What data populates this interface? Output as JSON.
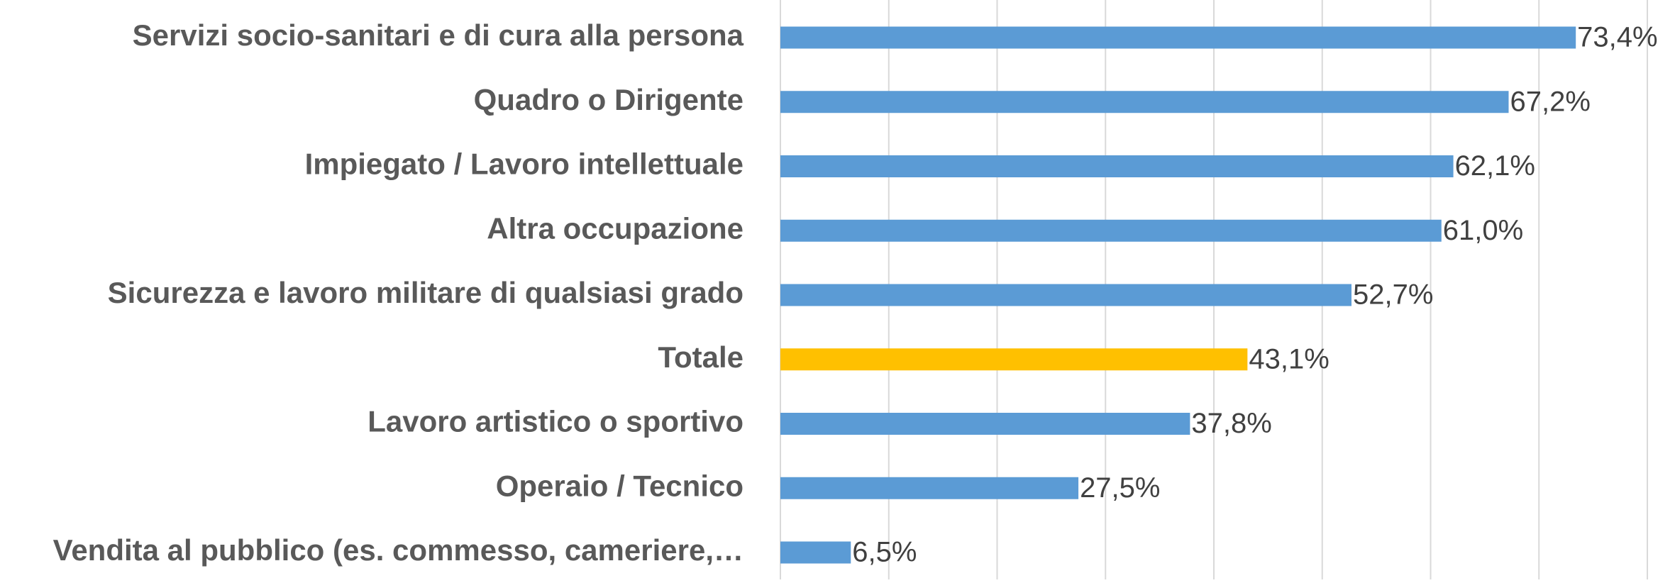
{
  "chart_data": {
    "type": "barh",
    "categories": [
      "Servizi socio-sanitari e di cura alla persona",
      "Quadro o Dirigente",
      "Impiegato / Lavoro intellettuale",
      "Altra occupazione",
      "Sicurezza e lavoro militare di qualsiasi grado",
      "Totale",
      "Lavoro artistico o sportivo",
      "Operaio / Tecnico",
      "Vendita al pubblico (es. commesso, cameriere,…"
    ],
    "values": [
      73.4,
      67.2,
      62.1,
      61.0,
      52.7,
      43.1,
      37.8,
      27.5,
      6.5
    ],
    "value_labels": [
      "73,4%",
      "67,2%",
      "62,1%",
      "61,0%",
      "52,7%",
      "43,1%",
      "37,8%",
      "27,5%",
      "6,5%"
    ],
    "colors": [
      "#5b9bd5",
      "#5b9bd5",
      "#5b9bd5",
      "#5b9bd5",
      "#5b9bd5",
      "#ffc000",
      "#5b9bd5",
      "#5b9bd5",
      "#5b9bd5"
    ],
    "xlim": [
      0,
      80
    ],
    "xticks": [
      0,
      10,
      20,
      30,
      40,
      50,
      60,
      70,
      80
    ],
    "grid": true
  }
}
